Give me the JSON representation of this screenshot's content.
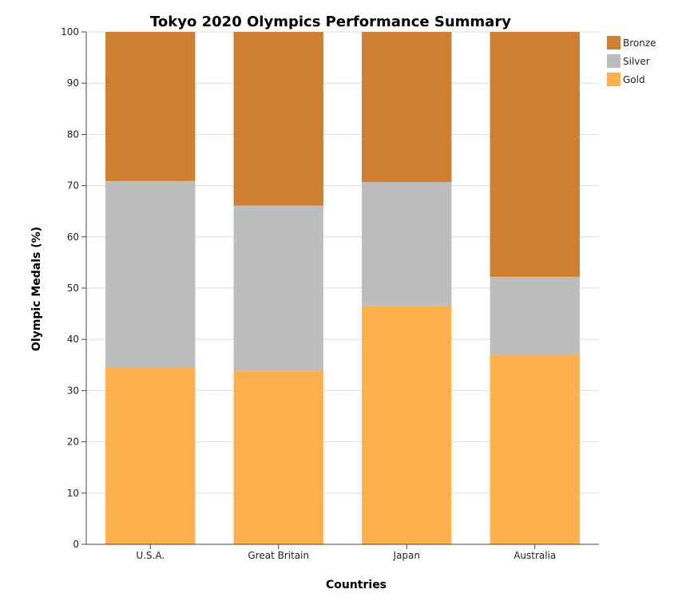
{
  "chart_data": {
    "type": "bar",
    "stacked": true,
    "title": "Tokyo 2020 Olympics Performance Summary",
    "xlabel": "Countries",
    "ylabel": "Olympic Medals (%)",
    "ylim": [
      0,
      100
    ],
    "yticks": [
      0,
      10,
      20,
      30,
      40,
      50,
      60,
      70,
      80,
      90,
      100
    ],
    "grid": true,
    "legend_position": "top-right",
    "categories": [
      "U.S.A.",
      "Great Britain",
      "Japan",
      "Australia"
    ],
    "series": [
      {
        "name": "Gold",
        "color": "#fdb04d",
        "values": [
          34.5,
          33.9,
          46.6,
          37.0
        ]
      },
      {
        "name": "Silver",
        "color": "#bdbdbd",
        "values": [
          36.4,
          32.2,
          24.1,
          15.2
        ]
      },
      {
        "name": "Bronze",
        "color": "#cd7f32",
        "values": [
          29.1,
          33.9,
          29.3,
          47.8
        ]
      }
    ],
    "legend_order": [
      "Bronze",
      "Silver",
      "Gold"
    ]
  }
}
